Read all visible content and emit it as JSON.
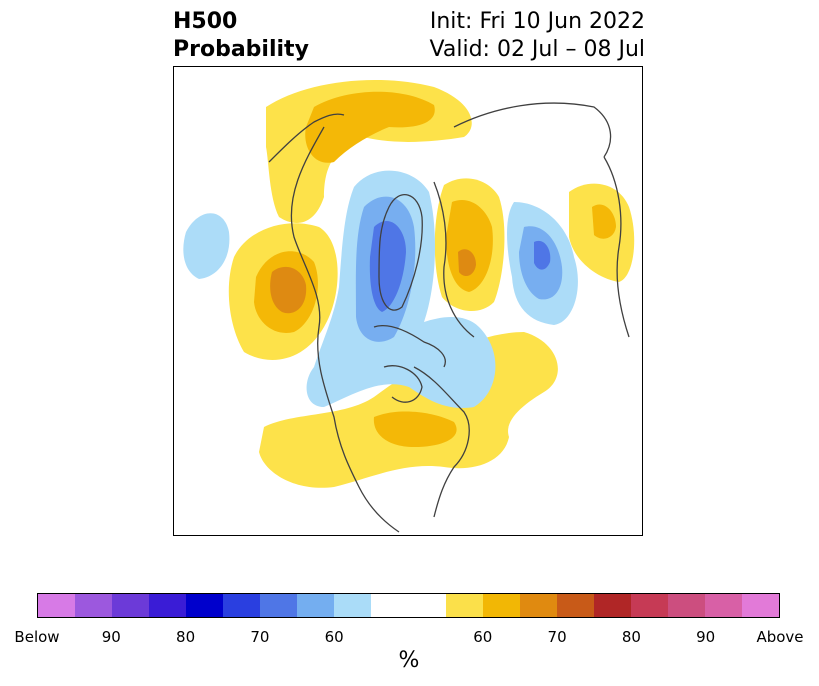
{
  "header": {
    "product_line1": "H500",
    "product_line2": "Probability",
    "init_line": "Init: Fri 10 Jun 2022",
    "valid_line": "Valid: 02 Jul – 08 Jul"
  },
  "colorbar": {
    "colors": [
      "#d77ae6",
      "#9c58de",
      "#6c3ad8",
      "#3a1cd6",
      "#0000cc",
      "#2a3fe0",
      "#4f76e6",
      "#74aef0",
      "#aadcf8",
      "#ffffff",
      "#ffffff",
      "#fbe04a",
      "#f2b705",
      "#e08a10",
      "#c85a18",
      "#b02626",
      "#c63a55",
      "#cc4e7f",
      "#d860a6",
      "#e27ad8"
    ],
    "tick_labels": [
      "Below",
      "90",
      "80",
      "70",
      "60",
      "60",
      "70",
      "80",
      "90",
      "Above"
    ],
    "unit_label": "%"
  },
  "palette": {
    "above_60": "#fde24a",
    "above_70": "#f4b807",
    "above_80": "#de8a12",
    "below_60": "#acdcf8",
    "below_70": "#77aef0",
    "below_80": "#4f76e6",
    "coastline": "#404040"
  },
  "map": {
    "projection": "north-polar-stereographic",
    "variable": "500 hPa height anomaly probability"
  }
}
